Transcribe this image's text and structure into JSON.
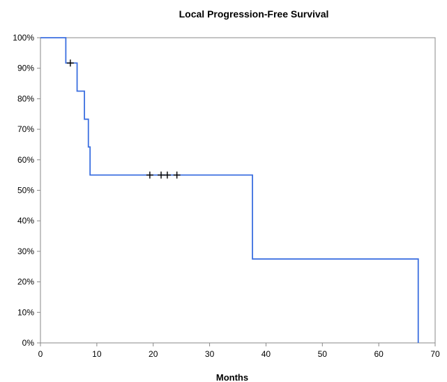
{
  "chart_data": {
    "type": "line",
    "title": "Local Progression-Free Survival",
    "xlabel": "Months",
    "ylabel": "",
    "xlim": [
      0,
      70
    ],
    "ylim": [
      0,
      100
    ],
    "x_ticks": [
      0,
      10,
      20,
      30,
      40,
      50,
      60,
      70
    ],
    "y_ticks": [
      0,
      10,
      20,
      30,
      40,
      50,
      60,
      70,
      80,
      90,
      100
    ],
    "y_tick_suffix": "%",
    "grid": false,
    "legend": "none",
    "series": [
      {
        "style": "step",
        "color": "#3b6fe0",
        "x": [
          0,
          4.5,
          6.5,
          7.8,
          8.5,
          8.8,
          37.6,
          67.0,
          67.0
        ],
        "y": [
          100,
          91.7,
          82.5,
          73.3,
          64.2,
          55.0,
          27.5,
          27.5,
          0
        ],
        "censored": [
          {
            "x": 5.3,
            "y": 91.7
          },
          {
            "x": 19.4,
            "y": 55.0
          },
          {
            "x": 21.4,
            "y": 55.0
          },
          {
            "x": 22.5,
            "y": 55.0
          },
          {
            "x": 24.2,
            "y": 55.0
          }
        ]
      }
    ],
    "colors": {
      "line": "#3b6fe0",
      "censor_mark": "#000000",
      "axis": "#888888"
    }
  }
}
